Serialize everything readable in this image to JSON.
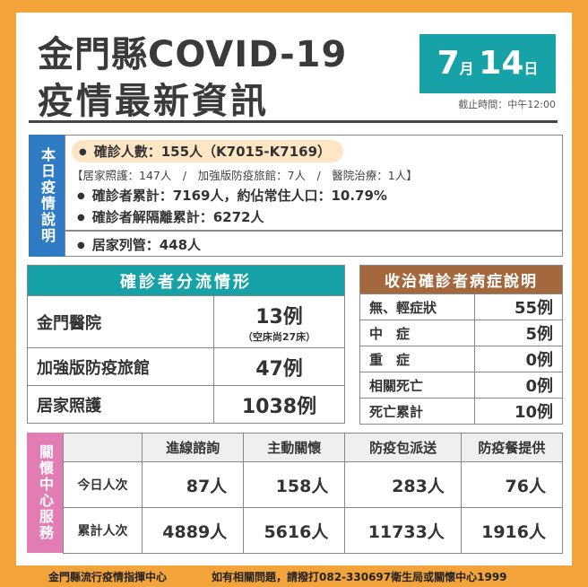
{
  "header": {
    "title_line1": "金門縣COVID-19",
    "title_line2": "疫情最新資訊",
    "date_month": "7",
    "date_month_unit": "月",
    "date_day": "14",
    "date_day_unit": "日",
    "cutoff": "截止時間：中午12:00"
  },
  "today": {
    "label": "本日疫情說明",
    "items": [
      "確診人數：155人（K7015-K7169）",
      "【居家照護：147人　/　加強版防疫旅館：7人　/　醫院治療：1人】",
      "確診者累計：7169人，約佔常住人口：10.79%",
      "確診者解隔離累計：6272人",
      "居家列管：448人"
    ]
  },
  "triage": {
    "title": "確診者分流情形",
    "rows": [
      [
        "金門醫院",
        "13例",
        "（空床尚27床）"
      ],
      [
        "加強版防疫旅館",
        "47例"
      ],
      [
        "居家照護",
        "1038例"
      ]
    ]
  },
  "symptoms": {
    "title": "收治確診者病症說明",
    "rows": [
      [
        "無、輕症狀",
        "55例"
      ],
      [
        "中　症",
        "5例"
      ],
      [
        "重　症",
        "0例"
      ],
      [
        "相關死亡",
        "0例"
      ],
      [
        "死亡累計",
        "10例"
      ]
    ]
  },
  "care": {
    "label": "關懷中心服務",
    "columns": [
      "進線諮詢",
      "主動關懷",
      "防疫包派送",
      "防疫餐提供"
    ],
    "rows": [
      [
        "今日人次",
        "87人",
        "158人",
        "283人",
        "76人"
      ],
      [
        "累計人次",
        "4889人",
        "5616人",
        "11733人",
        "1916人"
      ]
    ]
  },
  "footer": {
    "left": "金門縣流行疫情指揮中心",
    "right": "如有相關問題，請撥打082-330697衛生局或關懷中心1999"
  }
}
